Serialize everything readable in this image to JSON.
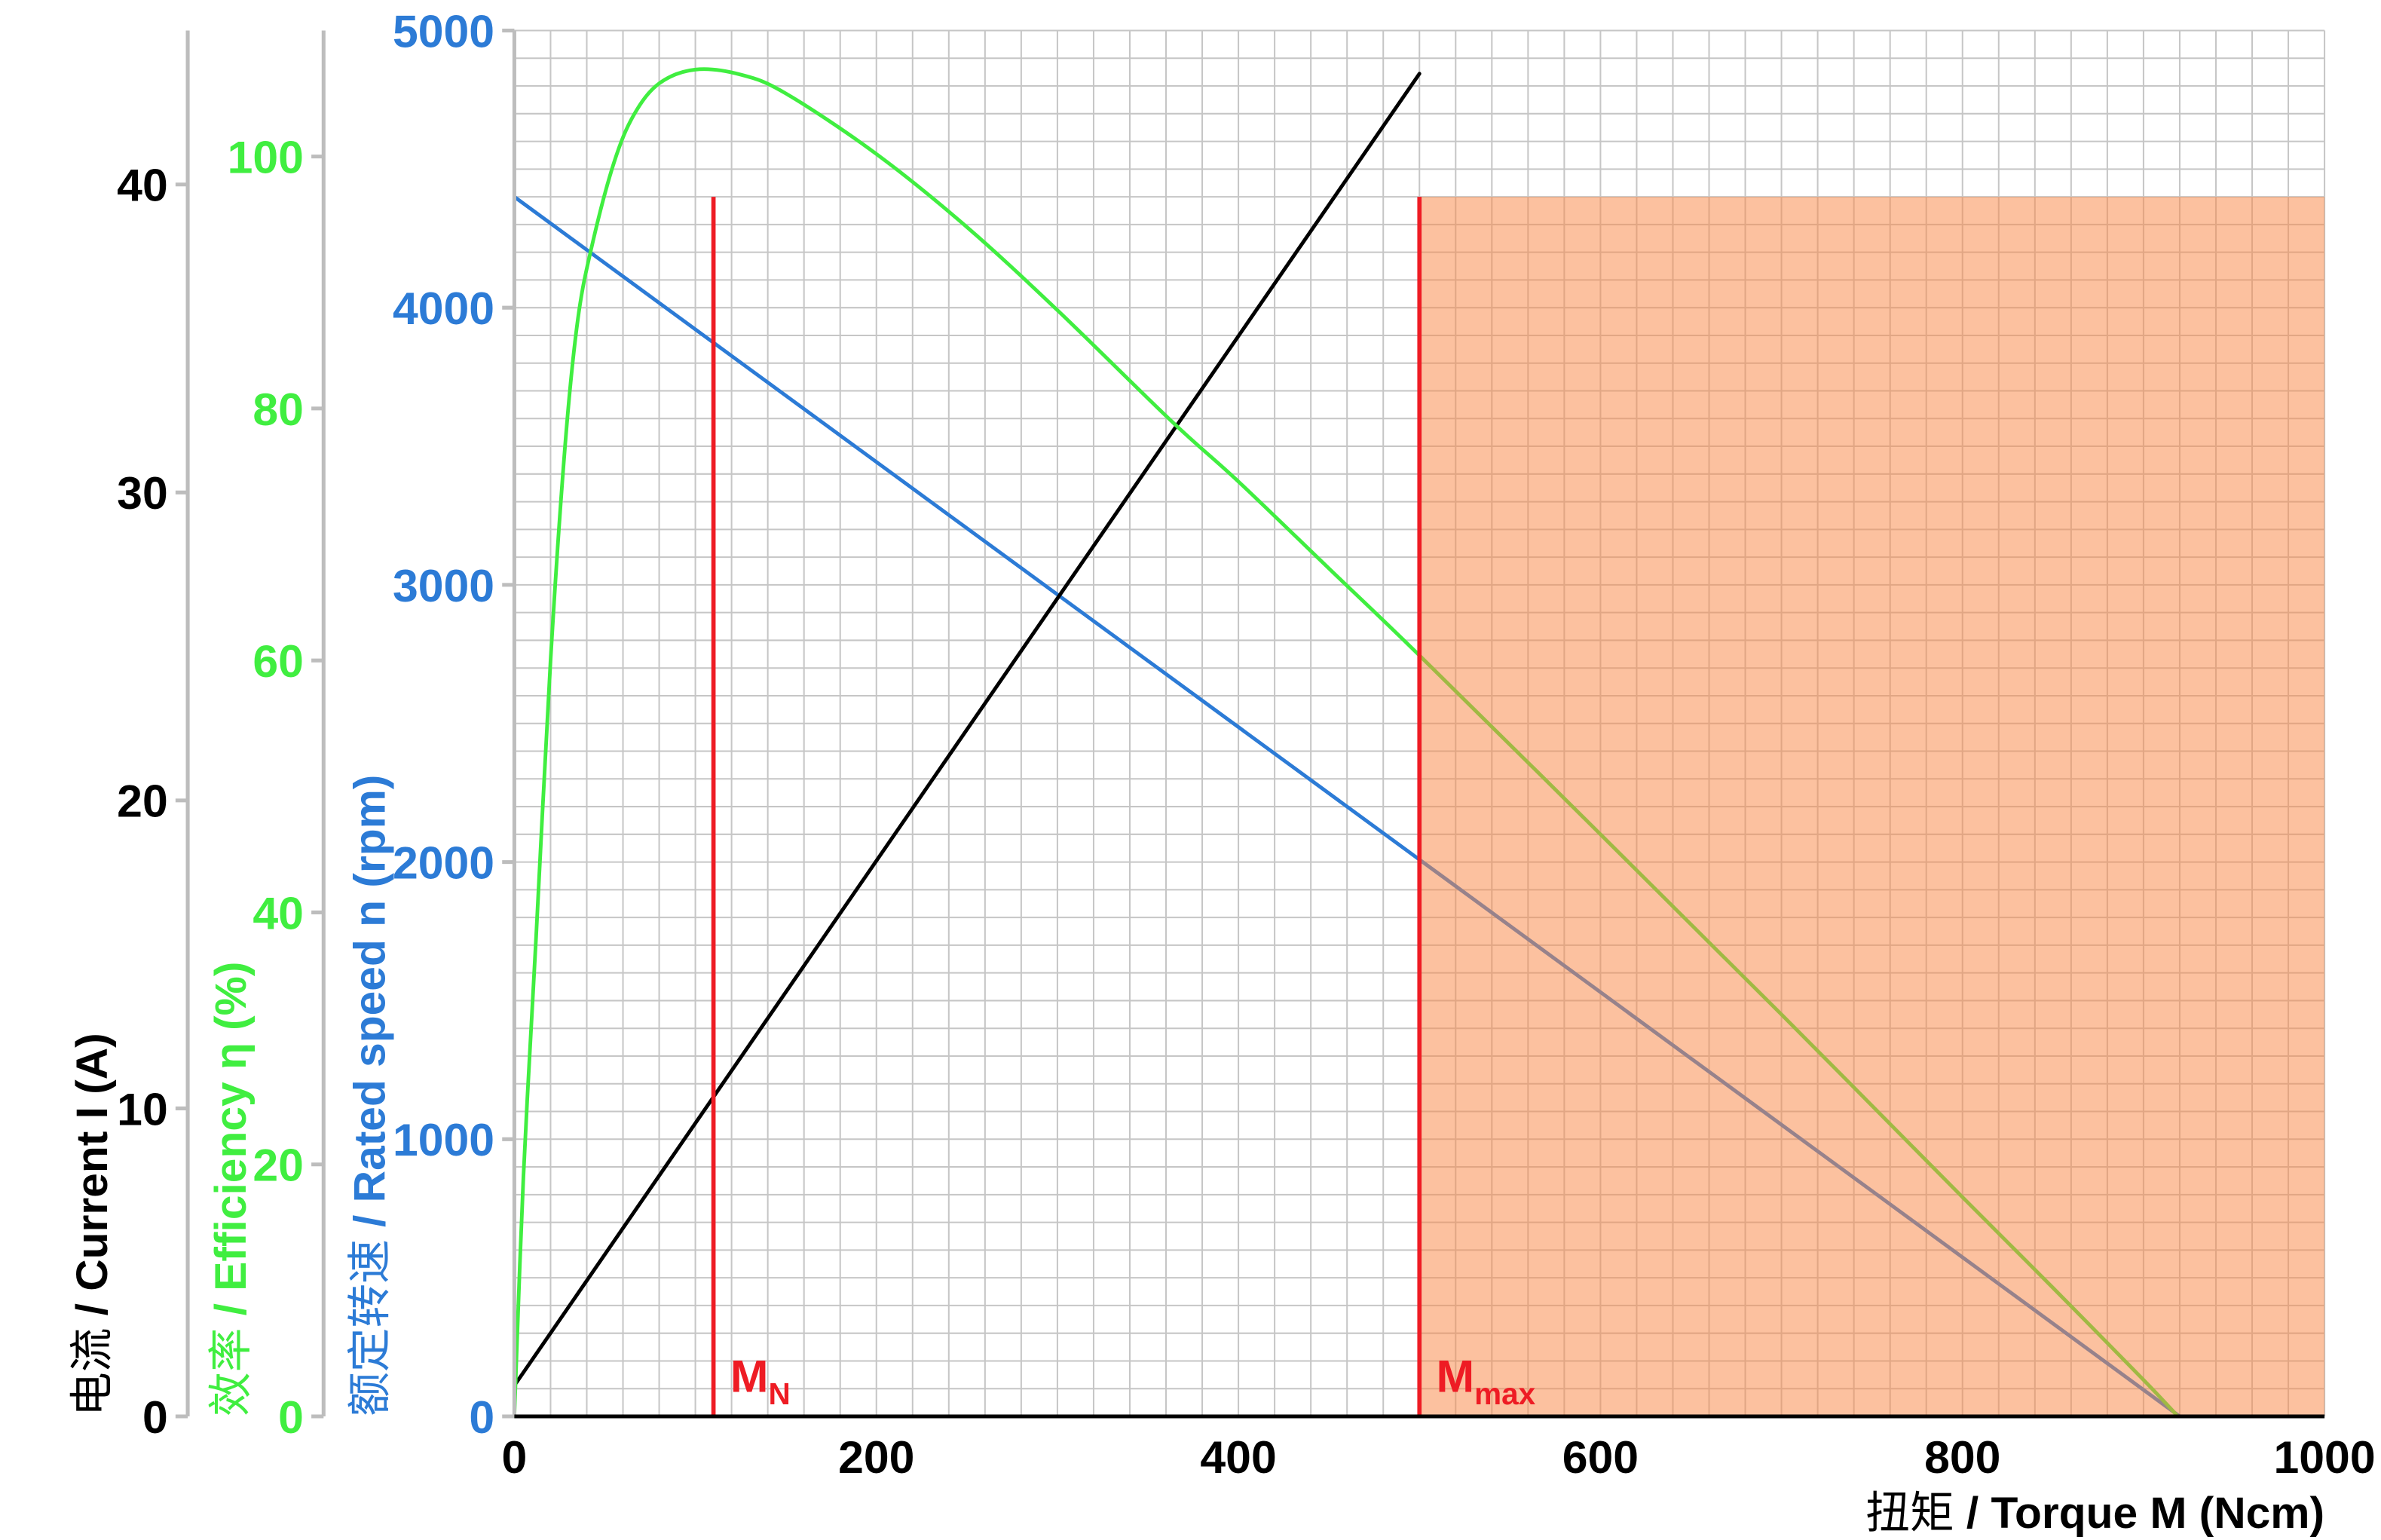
{
  "chart_data": {
    "type": "line",
    "x_axis": {
      "label_cn": "扭矩",
      "label_en": "/ Torque M (Ncm)",
      "lim": [
        0,
        1000
      ],
      "ticks": [
        0,
        200,
        400,
        600,
        800,
        1000
      ],
      "color": "#000000"
    },
    "y_axes": {
      "current": {
        "label_cn": "电流",
        "label_en": "/ Current I (A)",
        "lim": [
          0,
          45
        ],
        "ticks": [
          0,
          10,
          20,
          30,
          40
        ],
        "color": "#000000"
      },
      "efficiency": {
        "label_cn": "效率",
        "label_en": "/ Efficiency η (%)",
        "lim": [
          0,
          110
        ],
        "ticks": [
          0,
          20,
          40,
          60,
          80,
          100
        ],
        "color": "#40EE40"
      },
      "speed": {
        "label_cn": "额定转速",
        "label_en": "/ Rated speed n (rpm)",
        "lim": [
          0,
          5000
        ],
        "ticks": [
          0,
          1000,
          2000,
          3000,
          4000,
          5000
        ],
        "color": "#2C7BD6"
      }
    },
    "series": [
      {
        "axis": "speed",
        "color": "#2C7BD6",
        "points": [
          [
            0,
            4400
          ],
          [
            920,
            0
          ]
        ]
      },
      {
        "axis": "current",
        "color": "#000000",
        "points": [
          [
            0,
            1.0
          ],
          [
            500,
            43.6
          ]
        ]
      },
      {
        "axis": "efficiency",
        "color": "#40EE40",
        "points": [
          [
            0,
            0
          ],
          [
            5,
            19
          ],
          [
            12,
            38
          ],
          [
            20,
            60
          ],
          [
            28,
            77
          ],
          [
            35,
            87
          ],
          [
            43,
            93
          ],
          [
            55,
            99.5
          ],
          [
            66,
            103.3
          ],
          [
            80,
            105.8
          ],
          [
            100,
            106.9
          ],
          [
            125,
            106.5
          ],
          [
            150,
            105
          ],
          [
            200,
            100.2
          ],
          [
            250,
            94.4
          ],
          [
            300,
            87.8
          ],
          [
            363,
            79
          ],
          [
            400,
            74.2
          ],
          [
            450,
            67.3
          ],
          [
            500,
            60.4
          ],
          [
            600,
            46.2
          ],
          [
            700,
            31.9
          ],
          [
            800,
            17.4
          ],
          [
            850,
            10.2
          ],
          [
            900,
            2.9
          ],
          [
            919,
            0
          ]
        ]
      }
    ],
    "markers": [
      {
        "label": "M",
        "sub": "N",
        "x": 110,
        "y_top": 4400,
        "axis": "speed",
        "color": "#EE1C24"
      },
      {
        "label": "M",
        "sub": "max",
        "x": 500,
        "y_top": 4400,
        "axis": "speed",
        "color": "#EE1C24"
      }
    ],
    "shaded_region": {
      "x": [
        500,
        1000
      ],
      "y": [
        0,
        4400
      ],
      "axis": "speed",
      "color": "#F98846"
    },
    "grid": true,
    "legend": "none"
  }
}
